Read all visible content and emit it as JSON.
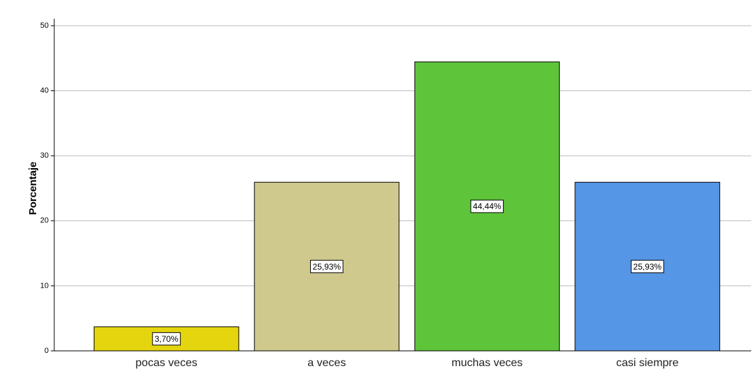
{
  "chart_data": {
    "type": "bar",
    "y_label": "Porcentaje",
    "categories": [
      "pocas veces",
      "a veces",
      "muchas veces",
      "casi siempre"
    ],
    "values": [
      3.7,
      25.93,
      44.44,
      25.93
    ],
    "value_labels": [
      "3,70%",
      "25,93%",
      "44,44%",
      "25,93%"
    ],
    "colors": [
      "#e5d50e",
      "#d0c98e",
      "#5ec43a",
      "#5696e6"
    ],
    "ylim": [
      0,
      50
    ],
    "yticks": [
      0,
      10,
      20,
      30,
      40,
      50
    ],
    "grid": true
  }
}
